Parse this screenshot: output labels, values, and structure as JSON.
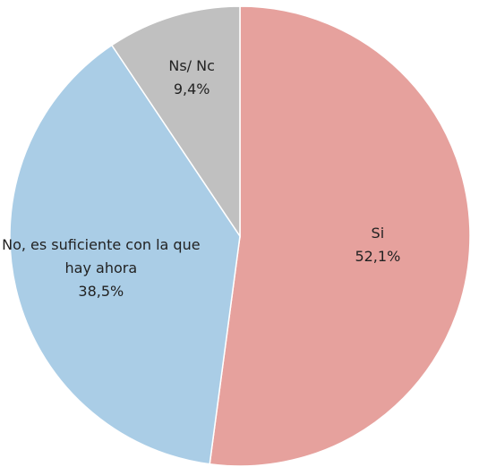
{
  "chart_data": {
    "type": "pie",
    "categories": [
      "Si",
      "No, es suficiente con la que hay ahora",
      "Ns/ Nc"
    ],
    "values": [
      52.1,
      38.5,
      9.4
    ],
    "value_labels": [
      "52,1%",
      "38,5%",
      "9,4%"
    ],
    "colors": [
      "#e6a19d",
      "#aacde6",
      "#c0c0c0"
    ]
  }
}
